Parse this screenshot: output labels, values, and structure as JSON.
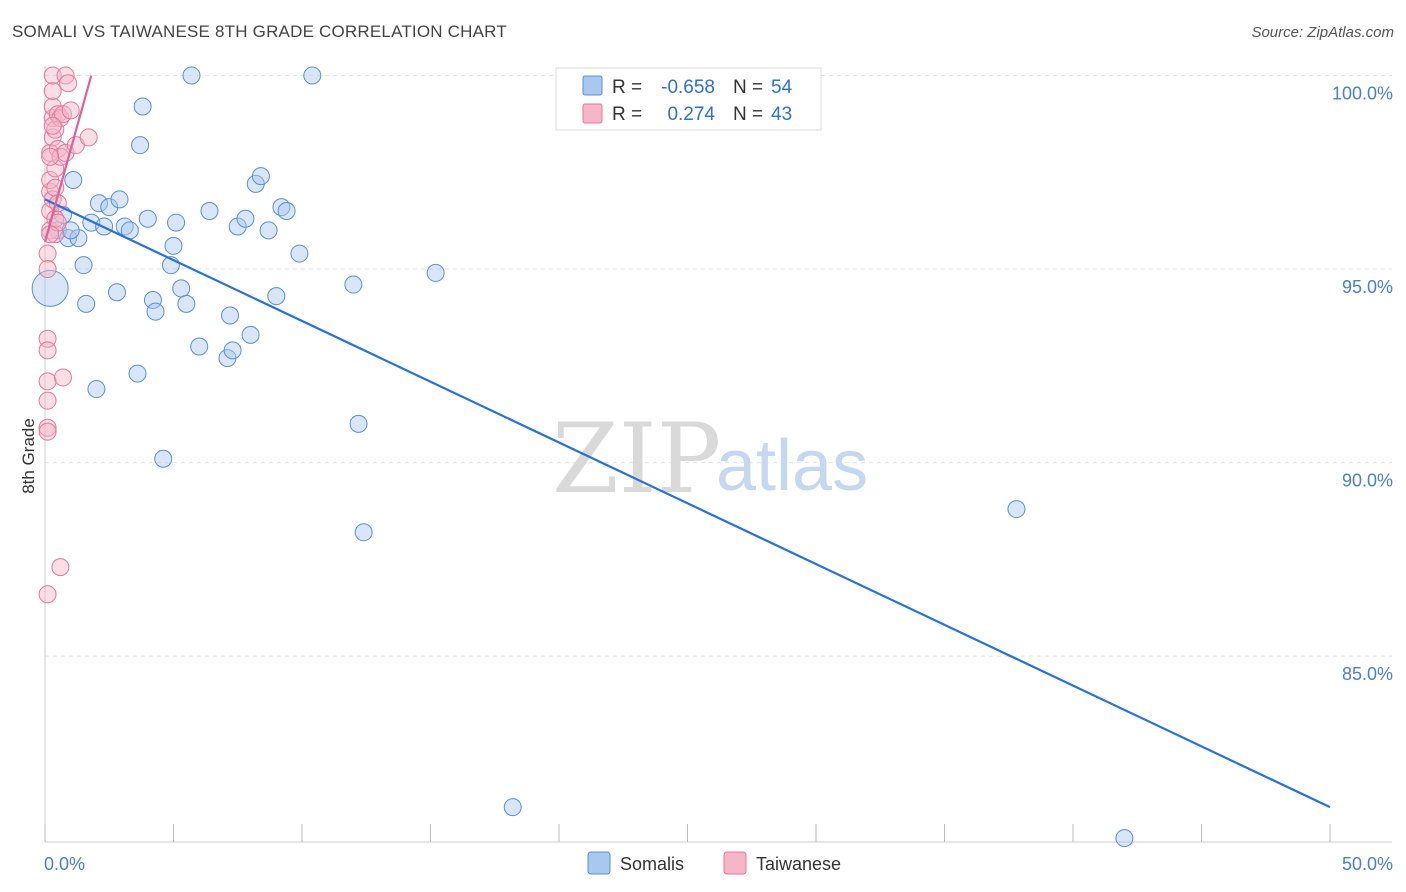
{
  "title": "SOMALI VS TAIWANESE 8TH GRADE CORRELATION CHART",
  "source": "Source: ZipAtlas.com",
  "legend": {
    "rows": [
      {
        "r_label": "R =",
        "r_value": "-0.658",
        "n_label": "N =",
        "n_value": "54",
        "color": "#a8c8f0",
        "stroke": "#5b8fd6"
      },
      {
        "r_label": "R =",
        "r_value": "0.274",
        "n_label": "N =",
        "n_value": "43",
        "color": "#f7b6c8",
        "stroke": "#e07a9b"
      }
    ]
  },
  "watermark": {
    "zip": "ZIP",
    "atlas": "atlas"
  },
  "chart_data": {
    "type": "scatter",
    "title": "SOMALI VS TAIWANESE 8TH GRADE CORRELATION CHART",
    "xlabel": "",
    "ylabel": "8th Grade",
    "xlim": [
      0,
      50
    ],
    "ylim": [
      80.2,
      100.4
    ],
    "x_tick_labels": [
      "0.0%",
      "50.0%"
    ],
    "y_ticks": [
      85,
      90,
      95,
      100
    ],
    "y_tick_labels": [
      "85.0%",
      "90.0%",
      "95.0%",
      "100.0%"
    ],
    "grid": true,
    "series": [
      {
        "name": "Somalis",
        "color": "#a8c8f0",
        "stroke": "#5b8fd6",
        "points": [
          [
            0.2,
            94.5
          ],
          [
            0.5,
            96.0
          ],
          [
            0.7,
            96.4
          ],
          [
            0.9,
            95.8
          ],
          [
            1.1,
            97.3
          ],
          [
            1.3,
            95.8
          ],
          [
            1.5,
            95.1
          ],
          [
            1.6,
            94.1
          ],
          [
            1.8,
            96.2
          ],
          [
            2.0,
            91.9
          ],
          [
            2.1,
            96.7
          ],
          [
            2.3,
            96.1
          ],
          [
            2.5,
            96.6
          ],
          [
            2.8,
            94.4
          ],
          [
            2.9,
            96.8
          ],
          [
            3.1,
            96.1
          ],
          [
            3.3,
            96.0
          ],
          [
            3.6,
            92.3
          ],
          [
            3.7,
            98.2
          ],
          [
            3.8,
            99.2
          ],
          [
            4.0,
            96.3
          ],
          [
            4.2,
            94.2
          ],
          [
            4.3,
            93.9
          ],
          [
            4.6,
            90.1
          ],
          [
            4.9,
            95.1
          ],
          [
            5.0,
            95.6
          ],
          [
            5.1,
            96.2
          ],
          [
            5.3,
            94.5
          ],
          [
            5.5,
            94.1
          ],
          [
            5.7,
            100.0
          ],
          [
            6.0,
            93.0
          ],
          [
            6.4,
            96.5
          ],
          [
            7.1,
            92.7
          ],
          [
            7.2,
            93.8
          ],
          [
            7.3,
            92.9
          ],
          [
            7.5,
            96.1
          ],
          [
            7.8,
            96.3
          ],
          [
            8.0,
            93.3
          ],
          [
            8.2,
            97.2
          ],
          [
            8.4,
            97.4
          ],
          [
            8.7,
            96.0
          ],
          [
            9.0,
            94.3
          ],
          [
            9.2,
            96.6
          ],
          [
            9.4,
            96.5
          ],
          [
            9.9,
            95.4
          ],
          [
            10.4,
            100.0
          ],
          [
            12.0,
            94.6
          ],
          [
            12.2,
            91.0
          ],
          [
            12.4,
            88.2
          ],
          [
            15.2,
            94.9
          ],
          [
            18.2,
            81.1
          ],
          [
            37.8,
            88.8
          ],
          [
            42.0,
            80.3
          ],
          [
            1.0,
            96.0
          ]
        ],
        "trendline": {
          "x": [
            0,
            50
          ],
          "y": [
            96.8,
            81.1
          ]
        }
      },
      {
        "name": "Taiwanese",
        "color": "#f7b6c8",
        "stroke": "#e07a9b",
        "points": [
          [
            0.1,
            93.2
          ],
          [
            0.1,
            92.9
          ],
          [
            0.1,
            92.1
          ],
          [
            0.1,
            91.6
          ],
          [
            0.1,
            90.9
          ],
          [
            0.1,
            90.8
          ],
          [
            0.1,
            86.6
          ],
          [
            0.1,
            95.4
          ],
          [
            0.1,
            95.0
          ],
          [
            0.2,
            96.0
          ],
          [
            0.2,
            96.5
          ],
          [
            0.2,
            97.0
          ],
          [
            0.2,
            97.3
          ],
          [
            0.2,
            98.0
          ],
          [
            0.3,
            98.4
          ],
          [
            0.3,
            98.9
          ],
          [
            0.3,
            99.2
          ],
          [
            0.3,
            99.6
          ],
          [
            0.3,
            100.0
          ],
          [
            0.3,
            96.8
          ],
          [
            0.4,
            95.9
          ],
          [
            0.4,
            96.3
          ],
          [
            0.4,
            97.1
          ],
          [
            0.4,
            97.6
          ],
          [
            0.4,
            98.6
          ],
          [
            0.5,
            99.0
          ],
          [
            0.5,
            98.1
          ],
          [
            0.5,
            96.7
          ],
          [
            0.6,
            97.9
          ],
          [
            0.6,
            98.9
          ],
          [
            0.7,
            99.0
          ],
          [
            0.7,
            92.2
          ],
          [
            0.8,
            98.0
          ],
          [
            0.8,
            100.0
          ],
          [
            0.9,
            99.8
          ],
          [
            1.0,
            99.1
          ],
          [
            1.2,
            98.2
          ],
          [
            1.7,
            98.4
          ],
          [
            0.6,
            87.3
          ],
          [
            0.2,
            97.9
          ],
          [
            0.3,
            98.7
          ],
          [
            0.5,
            96.2
          ],
          [
            0.2,
            95.9
          ]
        ],
        "trendline": {
          "x": [
            0,
            1.8
          ],
          "y": [
            95.7,
            100.0
          ]
        }
      }
    ]
  }
}
